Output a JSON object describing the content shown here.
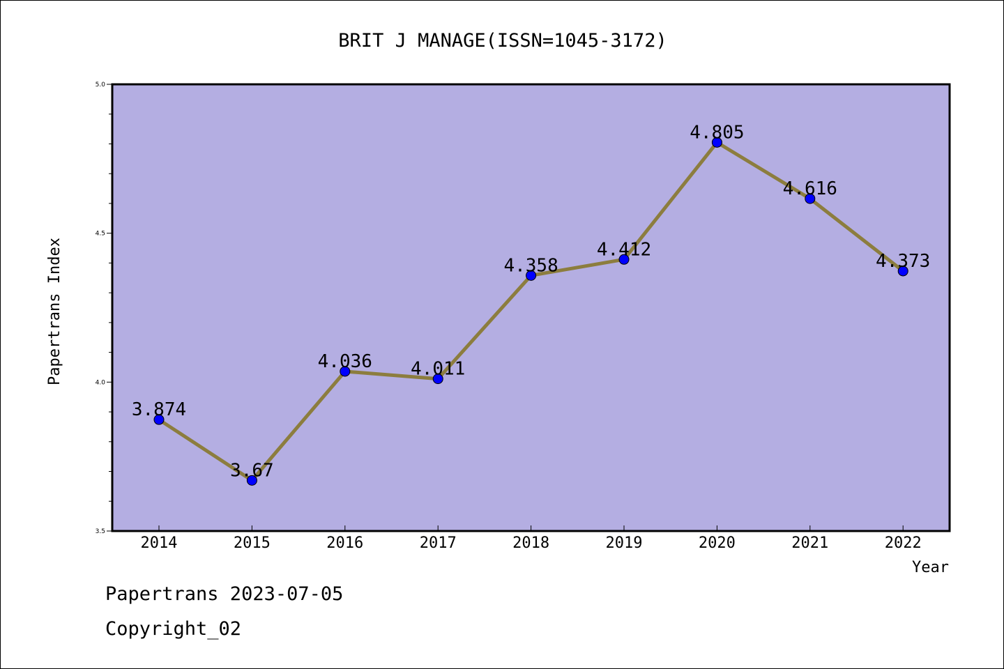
{
  "chart_data": {
    "type": "line",
    "title": "BRIT J MANAGE(ISSN=1045-3172)",
    "xlabel": "Year",
    "ylabel": "Papertrans Index",
    "categories": [
      "2014",
      "2015",
      "2016",
      "2017",
      "2018",
      "2019",
      "2020",
      "2021",
      "2022"
    ],
    "series": [
      {
        "values": [
          3.874,
          3.67,
          4.036,
          4.011,
          4.358,
          4.412,
          4.805,
          4.616,
          4.373
        ],
        "labels": [
          "3.874",
          "3.67",
          "4.036",
          "4.011",
          "4.358",
          "4.412",
          "4.805",
          "4.616",
          "4.373"
        ]
      }
    ],
    "ylim": [
      3.5,
      5.0
    ],
    "yticks": [
      "3.5",
      "4.0",
      "4.5",
      "5.0"
    ],
    "grid": false,
    "colors": {
      "plot_background": "#b4aee2",
      "line": "#8c7d3e",
      "marker": "#0000ff"
    }
  },
  "footer": {
    "date_text": "Papertrans 2023-07-05",
    "copyright_text": "Copyright_02"
  }
}
